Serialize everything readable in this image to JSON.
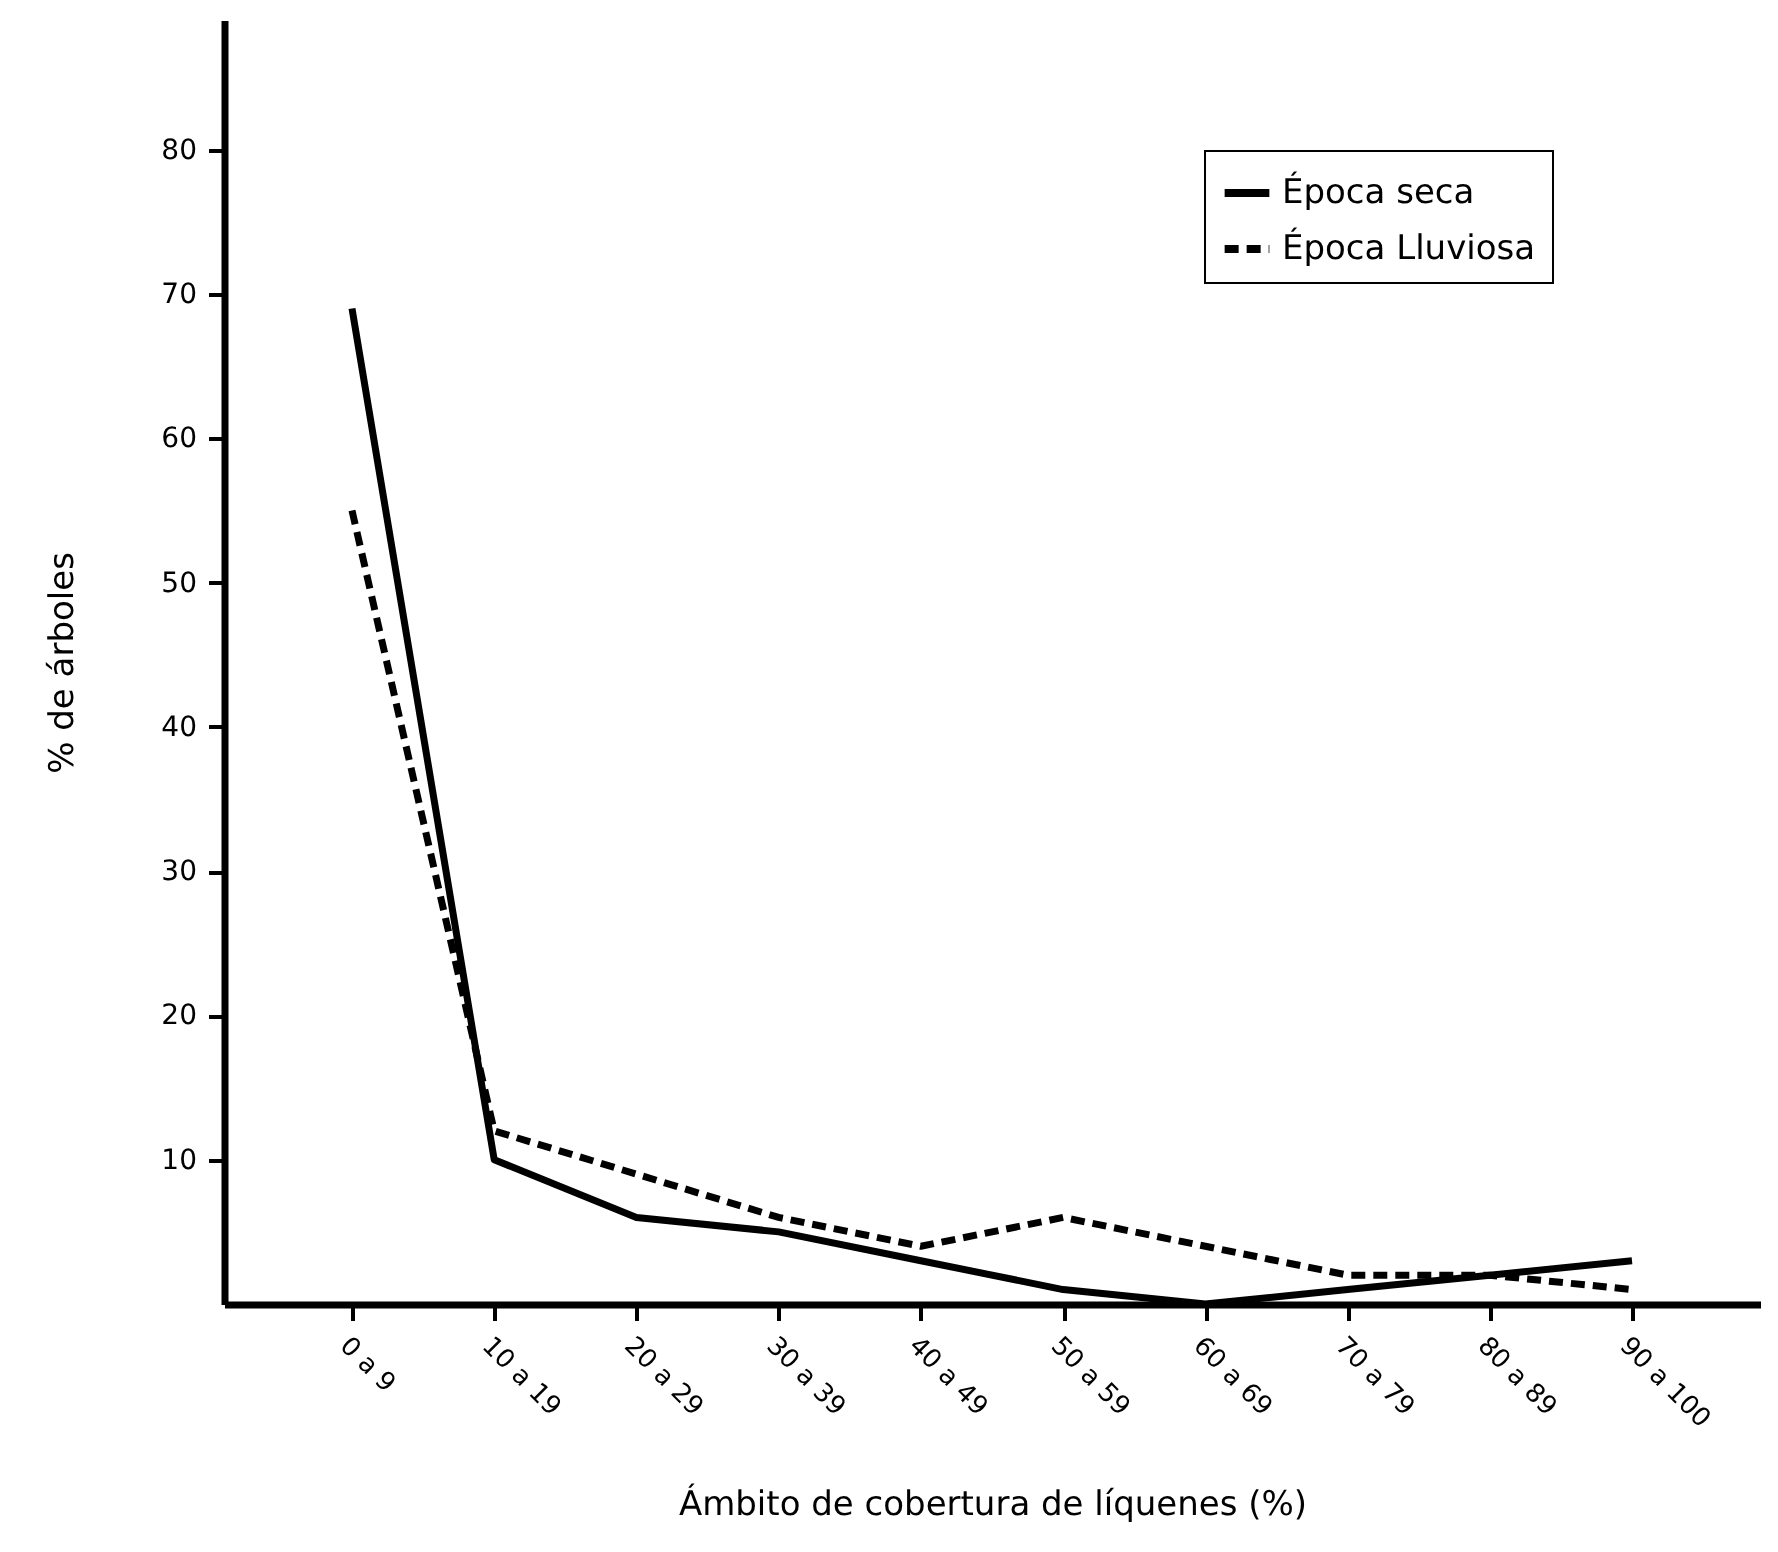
{
  "chart_data": {
    "type": "line",
    "xlabel": "Ámbito de cobertura de líquenes (%)",
    "ylabel": "% de árboles",
    "categories": [
      "0 a 9",
      "10 a 19",
      "20 a 29",
      "30 a 39",
      "40 a 49",
      "50 a 59",
      "60 a 69",
      "70 a 79",
      "80 a 89",
      "90 a 100"
    ],
    "series": [
      {
        "name": "Época seca",
        "color": "#000000",
        "line_style": "solid",
        "values": [
          69,
          10,
          6,
          5,
          3,
          1,
          0,
          1,
          2,
          3
        ]
      },
      {
        "name": "Época Lluviosa",
        "color": "#000000",
        "line_style": "dashed",
        "values": [
          55,
          12,
          9,
          6,
          4,
          6,
          4,
          2,
          2,
          1
        ]
      }
    ],
    "ylim": [
      0,
      89
    ],
    "yticks": [
      10,
      20,
      30,
      40,
      50,
      60,
      70,
      80
    ],
    "grid": false,
    "legend": "top right"
  }
}
